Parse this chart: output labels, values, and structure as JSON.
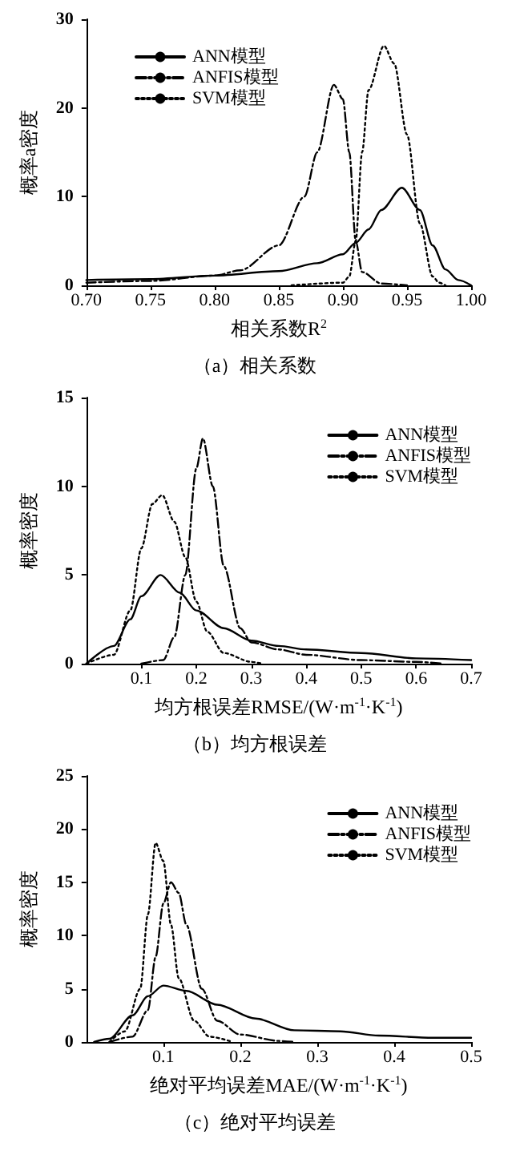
{
  "chart_data": [
    {
      "type": "line",
      "xlabel": "相关系数R$^{2}$",
      "ylabel": "概率a密度",
      "annotations": [
        "（a）相关系数"
      ],
      "xlim": [
        0.7,
        1.0
      ],
      "xticks": [
        {
          "value": 0.7,
          "label": "0.70"
        },
        0.75,
        {
          "value": 0.8,
          "label": "0.80"
        },
        0.85,
        {
          "value": 0.9,
          "label": "0.90"
        },
        0.95,
        {
          "value": 1.0,
          "label": "1.00"
        }
      ],
      "ylim": [
        0,
        30
      ],
      "yticks": [
        0,
        10,
        20,
        30
      ],
      "grid": false,
      "legend": "top left",
      "marker": "none",
      "series": [
        {
          "name": "ANN模型",
          "color": "#000000",
          "line_style": "solid",
          "x": [
            0.7,
            0.75,
            0.8,
            0.85,
            0.88,
            0.9,
            0.91,
            0.92,
            0.93,
            0.946,
            0.96,
            0.97,
            0.98,
            0.99,
            1.0
          ],
          "values": [
            0.6,
            0.7,
            1.1,
            1.6,
            2.5,
            3.5,
            4.8,
            6.3,
            8.5,
            11,
            8.5,
            4.5,
            1.8,
            0.6,
            0
          ]
        },
        {
          "name": "ANFIS模型",
          "color": "#000000",
          "line_style": "dashdot",
          "x": [
            0.7,
            0.75,
            0.8,
            0.82,
            0.85,
            0.87,
            0.88,
            0.893,
            0.9,
            0.905,
            0.91,
            0.915,
            0.93,
            0.95
          ],
          "values": [
            0.3,
            0.5,
            1.1,
            1.7,
            4.5,
            10,
            15,
            22.6,
            21,
            15,
            5,
            1.5,
            0.2,
            0
          ]
        },
        {
          "name": "SVM模型",
          "color": "#000000",
          "line_style": "dotted",
          "x": [
            0.86,
            0.9,
            0.905,
            0.91,
            0.915,
            0.92,
            0.932,
            0.94,
            0.95,
            0.96,
            0.97,
            0.975,
            0.98
          ],
          "values": [
            0,
            0.3,
            1,
            5,
            15,
            22,
            27,
            25,
            17,
            7,
            1,
            0.3,
            0
          ]
        }
      ]
    },
    {
      "type": "line",
      "xlabel": "均方根误差RMSE/(W·m$^{-1}$·K$^{-1}$)",
      "ylabel": "概率密度",
      "annotations": [
        "（b）均方根误差"
      ],
      "xlim": [
        0,
        0.7
      ],
      "xticks": [
        0.1,
        0.2,
        0.3,
        0.4,
        0.5,
        0.6,
        0.7
      ],
      "ylim": [
        0,
        15
      ],
      "yticks": [
        0,
        5,
        10,
        15
      ],
      "grid": false,
      "legend": "top right",
      "marker": "none",
      "series": [
        {
          "name": "ANN模型",
          "color": "#000000",
          "line_style": "solid",
          "x": [
            0,
            0.05,
            0.08,
            0.1,
            0.135,
            0.17,
            0.2,
            0.25,
            0.3,
            0.35,
            0.4,
            0.5,
            0.6,
            0.7
          ],
          "values": [
            0,
            1,
            2.5,
            3.8,
            5,
            4,
            3,
            2,
            1.3,
            1,
            0.8,
            0.6,
            0.3,
            0.2
          ]
        },
        {
          "name": "ANFIS模型",
          "color": "#000000",
          "line_style": "dashdot",
          "x": [
            0.1,
            0.14,
            0.16,
            0.18,
            0.2,
            0.212,
            0.23,
            0.25,
            0.28,
            0.3,
            0.35,
            0.4,
            0.5,
            0.6,
            0.65
          ],
          "values": [
            0,
            0.2,
            1.5,
            5,
            11,
            12.7,
            10,
            5.5,
            2,
            1.2,
            0.8,
            0.5,
            0.2,
            0.1,
            0
          ]
        },
        {
          "name": "SVM模型",
          "color": "#000000",
          "line_style": "dotted",
          "x": [
            0,
            0.05,
            0.08,
            0.1,
            0.12,
            0.138,
            0.16,
            0.18,
            0.2,
            0.22,
            0.25,
            0.3,
            0.32
          ],
          "values": [
            0,
            0.5,
            3,
            6.5,
            9,
            9.5,
            8,
            6,
            3.5,
            1.8,
            0.6,
            0.1,
            0
          ]
        }
      ]
    },
    {
      "type": "line",
      "xlabel": "绝对平均误差MAE/(W·m$^{-1}$·K$^{-1}$)",
      "ylabel": "概率密度",
      "annotations": [
        "（c）绝对平均误差"
      ],
      "xlim": [
        0,
        0.5
      ],
      "xticks": [
        0.1,
        0.2,
        0.3,
        0.4,
        0.5
      ],
      "ylim": [
        0,
        25
      ],
      "yticks": [
        0,
        5,
        10,
        15,
        20,
        25
      ],
      "grid": false,
      "legend": "top right",
      "marker": "none",
      "series": [
        {
          "name": "ANN模型",
          "color": "#000000",
          "line_style": "solid",
          "x": [
            0.01,
            0.03,
            0.06,
            0.08,
            0.1,
            0.13,
            0.17,
            0.22,
            0.27,
            0.33,
            0.38,
            0.45,
            0.5
          ],
          "values": [
            0,
            0.3,
            2.5,
            4.3,
            5.3,
            4.8,
            3.5,
            2.2,
            1.1,
            1,
            0.6,
            0.4,
            0.4
          ]
        },
        {
          "name": "ANFIS模型",
          "color": "#000000",
          "line_style": "dashdot",
          "x": [
            0.03,
            0.06,
            0.08,
            0.09,
            0.1,
            0.11,
            0.12,
            0.13,
            0.15,
            0.17,
            0.2,
            0.25,
            0.27
          ],
          "values": [
            0,
            0.5,
            3,
            8,
            13,
            15,
            14,
            11,
            5,
            2,
            0.7,
            0.1,
            0
          ]
        },
        {
          "name": "SVM模型",
          "color": "#000000",
          "line_style": "dotted",
          "x": [
            0.03,
            0.05,
            0.07,
            0.08,
            0.09,
            0.1,
            0.11,
            0.12,
            0.14,
            0.16,
            0.19
          ],
          "values": [
            0,
            1,
            5,
            12,
            18.7,
            17,
            11,
            6,
            2,
            0.5,
            0
          ]
        }
      ]
    }
  ]
}
